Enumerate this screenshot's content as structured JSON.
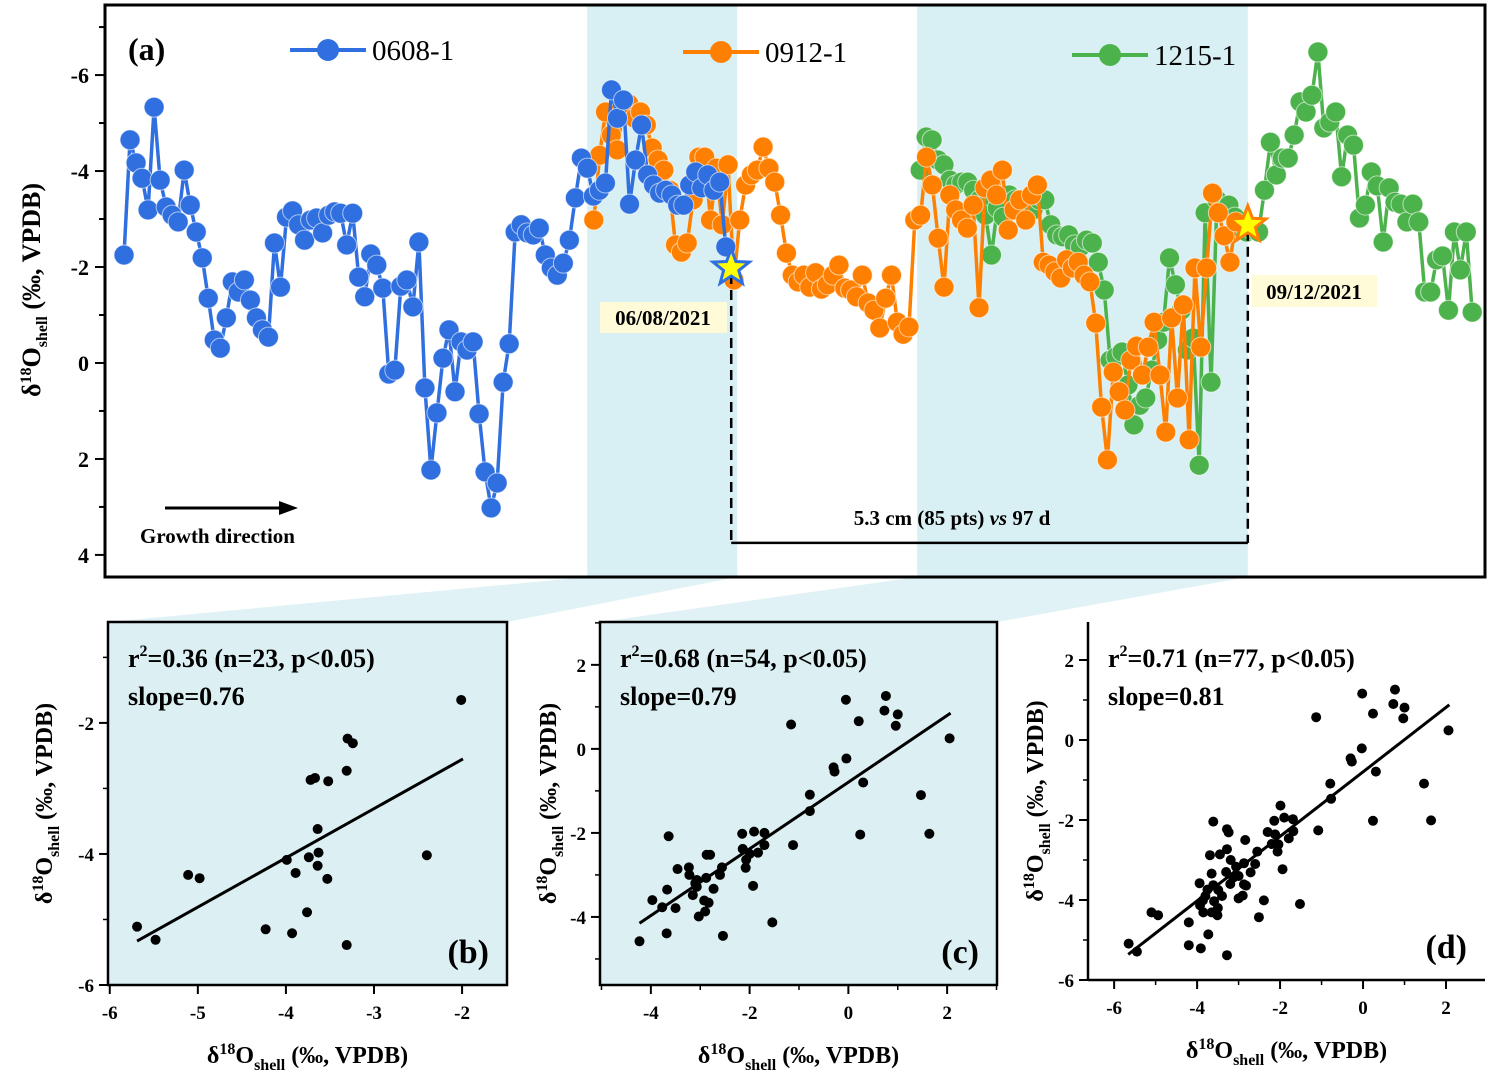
{
  "chart_data": [
    {
      "panel": "(a)",
      "type": "line",
      "xlabel": "",
      "ylabel": {
        "prefix": "δ",
        "sup": "18",
        "main": "O",
        "sub": "shell",
        "suffix": " (‰, VPDB)"
      },
      "ylim": [
        -7.46,
        4.46
      ],
      "y_reversed": true,
      "xlim": [
        -3.17,
        226.83
      ],
      "yticks": [
        -6,
        -4,
        -2,
        0,
        2,
        4
      ],
      "ytick_labels": [
        "-6",
        "-4",
        "-2",
        "0",
        "2",
        "4"
      ],
      "grid": false,
      "legend_placement": "top",
      "shaded_ranges": [
        [
          77.2,
          102.2
        ],
        [
          132.2,
          187.3
        ]
      ],
      "shade_color": "#d8eff3",
      "series": [
        {
          "name": "0608-1",
          "color": "#2f6fdf",
          "x_range": [
            0,
            100.3
          ],
          "values": [
            -2.25,
            -4.65,
            -4.17,
            -3.85,
            -3.19,
            -5.33,
            -3.81,
            -3.25,
            -3.08,
            -2.94,
            -4.02,
            -3.29,
            -2.73,
            -2.19,
            -1.35,
            -0.48,
            -0.31,
            -0.94,
            -1.69,
            -1.48,
            -1.73,
            -1.31,
            -0.94,
            -0.69,
            -0.54,
            -2.5,
            -1.58,
            -3.04,
            -3.17,
            -2.88,
            -2.56,
            -2.98,
            -3.02,
            -2.71,
            -3.08,
            -3.15,
            -3.12,
            -2.46,
            -3.12,
            -1.79,
            -1.38,
            -2.27,
            -2.04,
            -1.56,
            0.23,
            0.15,
            -1.6,
            -1.73,
            -1.17,
            -2.52,
            0.52,
            2.23,
            1.04,
            -0.1,
            -0.69,
            0.6,
            -0.44,
            -0.27,
            -0.44,
            1.06,
            2.27,
            3.02,
            2.5,
            0.4,
            -0.4,
            -2.73,
            -2.88,
            -2.71,
            -2.67,
            -2.81,
            -2.25,
            -1.98,
            -1.83,
            -2.08,
            -2.56,
            -3.44,
            -4.27,
            -4.06,
            -3.48,
            -3.6,
            -3.75,
            -5.69,
            -5.1,
            -5.48,
            -3.31,
            -4.23,
            -4.96,
            -3.92,
            -3.71,
            -3.54,
            -3.6,
            -3.5,
            -3.29,
            -3.29,
            -3.71,
            -3.98,
            -3.65,
            -3.92,
            -3.6,
            -3.77,
            -2.42
          ]
        },
        {
          "name": "0912-1",
          "color": "#ff8000",
          "x_range": [
            78.3,
            185.3
          ],
          "values": [
            -2.98,
            -4.33,
            -5.23,
            -4.75,
            -4.44,
            -5.27,
            -5.4,
            -5.1,
            -5.23,
            -4.96,
            -4.48,
            -4.23,
            -4.02,
            -3.6,
            -2.46,
            -2.31,
            -2.5,
            -3.4,
            -4.29,
            -4.29,
            -2.98,
            -4.06,
            -2.88,
            -4.13,
            -1.73,
            -2.98,
            -3.71,
            -3.92,
            -4.02,
            -4.5,
            -4.06,
            -3.77,
            -3.08,
            -2.29,
            -1.83,
            -1.69,
            -1.83,
            -1.58,
            -1.88,
            -1.54,
            -1.63,
            -1.83,
            -2.04,
            -1.56,
            -1.52,
            -1.38,
            -1.83,
            -1.25,
            -1.1,
            -0.73,
            -1.35,
            -1.83,
            -0.85,
            -0.6,
            -0.75,
            -2.98,
            -3.08,
            -4.29,
            -3.71,
            -2.6,
            -1.58,
            -3.5,
            -3.19,
            -2.98,
            -2.81,
            -3.29,
            -1.15,
            -3.65,
            -3.81,
            -3.5,
            -4.02,
            -2.77,
            -3.19,
            -3.4,
            -2.98,
            -3.5,
            -3.71,
            -2.1,
            -2.04,
            -1.9,
            -1.77,
            -2.15,
            -1.98,
            -2.1,
            -1.83,
            -1.69,
            -0.83,
            0.92,
            2.02,
            0.19,
            0.6,
            0.98,
            -0.06,
            -0.35,
            0.25,
            -0.33,
            -0.85,
            0.25,
            1.44,
            -0.94,
            0.73,
            -1.21,
            1.6,
            -1.98,
            -0.33,
            -1.98,
            -3.54,
            -3.13,
            -2.65,
            -2.1,
            -2.94
          ]
        },
        {
          "name": "1215-1",
          "color": "#4cb24c",
          "x_range": [
            132.7,
            224.7
          ],
          "values": [
            -4.02,
            -4.71,
            -4.65,
            -4.23,
            -4.13,
            -3.81,
            -3.71,
            -3.77,
            -3.77,
            -3.6,
            -3.4,
            -3.08,
            -2.25,
            -3.23,
            -3.04,
            -3.5,
            -3.4,
            -3.19,
            -3.25,
            -3.19,
            -3.4,
            -3.4,
            -2.88,
            -2.67,
            -2.63,
            -2.67,
            -2.46,
            -2.42,
            -2.56,
            -2.5,
            -2.1,
            -1.52,
            -0.06,
            -0.13,
            -0.23,
            0.46,
            1.29,
            0.88,
            0.73,
            0.15,
            -0.48,
            -0.85,
            -2.19,
            -1.63,
            -1.1,
            -0.27,
            -0.52,
            2.13,
            -3.13,
            0.4,
            -3.4,
            -3.19,
            -3.29,
            -3.04,
            -2.83,
            -2.73,
            -2.77,
            -2.73,
            -3.6,
            -4.6,
            -3.92,
            -4.27,
            -4.27,
            -4.75,
            -5.44,
            -5.23,
            -5.58,
            -6.48,
            -4.9,
            -5.02,
            -5.23,
            -3.88,
            -4.75,
            -4.54,
            -3.02,
            -3.29,
            -3.98,
            -3.69,
            -2.52,
            -3.65,
            -3.35,
            -3.31,
            -2.94,
            -3.31,
            -2.94,
            -1.48,
            -1.48,
            -2.15,
            -2.23,
            -1.1,
            -2.73,
            -1.94,
            -2.73,
            -1.06
          ]
        }
      ],
      "markers": [
        {
          "x": 101.2,
          "y": -1.98,
          "shape": "star",
          "fill": "#ffff00",
          "stroke": "#2f6fdf"
        },
        {
          "x": 187.3,
          "y": -2.88,
          "shape": "star",
          "fill": "#ffff00",
          "stroke": "#ff8000"
        }
      ],
      "bracket_y": 3.75,
      "annotations": {
        "date_start": "06/08/2021",
        "date_end": "09/12/2021",
        "span_text_1": "5.3 cm (85 pts) ",
        "span_text_italic": "vs",
        "span_text_2": " 97 d",
        "growth": "Growth direction"
      }
    },
    {
      "panel": "(b)",
      "type": "scatter",
      "stat_line1": {
        "r": "r",
        "sup": "2",
        "rest": "=0.36 (n=23, p<0.05)"
      },
      "stat_line2": "slope=0.76",
      "xlabel": {
        "prefix": "δ",
        "sup": "18",
        "main": "O",
        "sub": "shell",
        "suffix": " (‰, VPDB)"
      },
      "ylabel": {
        "prefix": "δ",
        "sup": "18",
        "main": "O",
        "sub": "shell",
        "suffix": " (‰, VPDB)"
      },
      "xlim": [
        -6.02,
        -1.49
      ],
      "ylim": [
        -6,
        -0.46
      ],
      "xticks": [
        -6,
        -5,
        -4,
        -3,
        -2
      ],
      "yticks": [
        -6,
        -4,
        -2
      ],
      "background": "#dcf0f4",
      "fit": [
        [
          -5.69,
          -5.33
        ],
        [
          -1.99,
          -2.55
        ]
      ],
      "points": [
        [
          -5.69,
          -5.11
        ],
        [
          -5.48,
          -5.31
        ],
        [
          -5.11,
          -4.32
        ],
        [
          -4.98,
          -4.37
        ],
        [
          -4.23,
          -5.15
        ],
        [
          -3.99,
          -4.09
        ],
        [
          -3.93,
          -5.21
        ],
        [
          -3.89,
          -4.29
        ],
        [
          -3.76,
          -4.89
        ],
        [
          -3.74,
          -4.05
        ],
        [
          -3.72,
          -2.87
        ],
        [
          -3.67,
          -2.84
        ],
        [
          -3.64,
          -3.62
        ],
        [
          -3.63,
          -3.98
        ],
        [
          -3.64,
          -4.18
        ],
        [
          -3.53,
          -4.38
        ],
        [
          -3.52,
          -2.89
        ],
        [
          -3.31,
          -2.73
        ],
        [
          -3.3,
          -2.24
        ],
        [
          -3.24,
          -2.31
        ],
        [
          -3.31,
          -5.39
        ],
        [
          -2.4,
          -4.02
        ],
        [
          -2.01,
          -1.65
        ]
      ]
    },
    {
      "panel": "(c)",
      "type": "scatter",
      "stat_line1": {
        "r": "r",
        "sup": "2",
        "rest": "=0.68 (n=54, p<0.05)"
      },
      "stat_line2": "slope=0.79",
      "xlabel": {
        "prefix": "δ",
        "sup": "18",
        "main": "O",
        "sub": "shell",
        "suffix": " (‰, VPDB)"
      },
      "ylabel": {
        "prefix": "δ",
        "sup": "18",
        "main": "O",
        "sub": "shell",
        "suffix": " (‰, VPDB)"
      },
      "xlim": [
        -5.03,
        3.01
      ],
      "ylim": [
        -5.62,
        3.02
      ],
      "xticks": [
        -4,
        -2,
        0,
        2
      ],
      "yticks": [
        -4,
        -2,
        0,
        2
      ],
      "background": "#dcf0f4",
      "fit": [
        [
          -4.23,
          -4.15
        ],
        [
          2.07,
          0.85
        ]
      ],
      "points": [
        [
          -0.05,
          1.17
        ],
        [
          0.76,
          1.26
        ],
        [
          0.73,
          0.91
        ],
        [
          1.0,
          0.82
        ],
        [
          0.96,
          0.55
        ],
        [
          0.21,
          0.66
        ],
        [
          -1.16,
          0.58
        ],
        [
          2.05,
          0.25
        ],
        [
          -0.04,
          -0.23
        ],
        [
          -0.3,
          -0.44
        ],
        [
          -0.28,
          -0.54
        ],
        [
          0.3,
          -0.8
        ],
        [
          -0.78,
          -1.09
        ],
        [
          -0.78,
          -1.48
        ],
        [
          1.47,
          -1.1
        ],
        [
          0.24,
          -2.04
        ],
        [
          1.64,
          -2.02
        ],
        [
          -3.64,
          -2.08
        ],
        [
          -2.15,
          -2.02
        ],
        [
          -1.91,
          -1.97
        ],
        [
          -1.7,
          -2.0
        ],
        [
          -1.7,
          -2.29
        ],
        [
          -1.12,
          -2.29
        ],
        [
          -2.14,
          -2.38
        ],
        [
          -1.83,
          -2.47
        ],
        [
          -2.87,
          -2.52
        ],
        [
          -2.8,
          -2.52
        ],
        [
          -2.07,
          -2.64
        ],
        [
          -2.08,
          -2.83
        ],
        [
          -2.56,
          -2.82
        ],
        [
          -3.23,
          -2.82
        ],
        [
          -3.46,
          -2.86
        ],
        [
          -3.22,
          -3.0
        ],
        [
          -2.88,
          -3.07
        ],
        [
          -3.07,
          -3.12
        ],
        [
          -3.07,
          -3.28
        ],
        [
          -2.73,
          -3.33
        ],
        [
          -3.67,
          -3.35
        ],
        [
          -3.15,
          -3.48
        ],
        [
          -2.92,
          -3.61
        ],
        [
          -2.83,
          -3.66
        ],
        [
          -1.93,
          -3.26
        ],
        [
          -3.97,
          -3.6
        ],
        [
          -3.77,
          -3.77
        ],
        [
          -3.5,
          -3.79
        ],
        [
          -2.9,
          -3.87
        ],
        [
          -3.03,
          -3.99
        ],
        [
          -1.54,
          -4.13
        ],
        [
          -3.68,
          -4.39
        ],
        [
          -2.54,
          -4.45
        ],
        [
          -4.23,
          -4.58
        ],
        [
          -3.1,
          -3.2
        ],
        [
          -2.0,
          -2.5
        ],
        [
          -2.6,
          -3.0
        ]
      ]
    },
    {
      "panel": "(d)",
      "type": "scatter",
      "stat_line1": {
        "r": "r",
        "sup": "2",
        "rest": "=0.71 (n=77, p<0.05)"
      },
      "stat_line2": "slope=0.81",
      "xlabel": {
        "prefix": "δ",
        "sup": "18",
        "main": "O",
        "sub": "shell",
        "suffix": " (‰, VPDB)"
      },
      "ylabel": {
        "prefix": "δ",
        "sup": "18",
        "main": "O",
        "sub": "shell",
        "suffix": " (‰, VPDB)"
      },
      "xlim": [
        -6.63,
        2.94
      ],
      "ylim": [
        -6,
        2.95
      ],
      "xticks": [
        -6,
        -4,
        -2,
        0,
        2
      ],
      "yticks": [
        -6,
        -4,
        -2,
        0,
        2
      ],
      "background": "#ffffff",
      "fit": [
        [
          -5.66,
          -5.36
        ],
        [
          2.08,
          0.88
        ]
      ],
      "points": [
        [
          -0.02,
          1.16
        ],
        [
          0.77,
          1.26
        ],
        [
          0.73,
          0.9
        ],
        [
          1.0,
          0.81
        ],
        [
          0.97,
          0.54
        ],
        [
          0.24,
          0.66
        ],
        [
          -1.13,
          0.57
        ],
        [
          2.06,
          0.24
        ],
        [
          -0.03,
          -0.21
        ],
        [
          -0.3,
          -0.46
        ],
        [
          -0.27,
          -0.54
        ],
        [
          0.31,
          -0.79
        ],
        [
          -0.79,
          -1.09
        ],
        [
          -0.77,
          -1.47
        ],
        [
          1.47,
          -1.09
        ],
        [
          0.24,
          -2.02
        ],
        [
          1.64,
          -2.01
        ],
        [
          -1.08,
          -2.26
        ],
        [
          -1.99,
          -1.64
        ],
        [
          -2.14,
          -2.02
        ],
        [
          -1.9,
          -1.94
        ],
        [
          -1.69,
          -1.98
        ],
        [
          -1.68,
          -2.28
        ],
        [
          -1.79,
          -2.46
        ],
        [
          -2.12,
          -2.36
        ],
        [
          -2.04,
          -2.61
        ],
        [
          -2.06,
          -2.79
        ],
        [
          -1.94,
          -3.23
        ],
        [
          -1.52,
          -4.1
        ],
        [
          -3.61,
          -2.04
        ],
        [
          -3.28,
          -2.23
        ],
        [
          -3.24,
          -2.31
        ],
        [
          -2.84,
          -2.5
        ],
        [
          -2.55,
          -2.79
        ],
        [
          -3.69,
          -2.88
        ],
        [
          -3.45,
          -2.86
        ],
        [
          -3.28,
          -2.73
        ],
        [
          -3.19,
          -3.0
        ],
        [
          -3.06,
          -3.17
        ],
        [
          -2.87,
          -3.08
        ],
        [
          -2.71,
          -3.31
        ],
        [
          -3.13,
          -3.44
        ],
        [
          -3.65,
          -3.34
        ],
        [
          -3.94,
          -3.58
        ],
        [
          -3.61,
          -3.63
        ],
        [
          -3.75,
          -3.74
        ],
        [
          -3.49,
          -3.75
        ],
        [
          -2.87,
          -3.61
        ],
        [
          -2.82,
          -3.64
        ],
        [
          -2.9,
          -3.89
        ],
        [
          -3.0,
          -3.96
        ],
        [
          -2.39,
          -4.01
        ],
        [
          -3.86,
          -4.01
        ],
        [
          -3.59,
          -4.03
        ],
        [
          -3.93,
          -4.13
        ],
        [
          -3.85,
          -4.31
        ],
        [
          -3.65,
          -4.31
        ],
        [
          -3.51,
          -4.38
        ],
        [
          -2.51,
          -4.43
        ],
        [
          -5.1,
          -4.31
        ],
        [
          -4.94,
          -4.38
        ],
        [
          -4.2,
          -4.56
        ],
        [
          -3.73,
          -4.86
        ],
        [
          -5.65,
          -5.09
        ],
        [
          -5.45,
          -5.29
        ],
        [
          -4.2,
          -5.13
        ],
        [
          -3.91,
          -5.21
        ],
        [
          -3.28,
          -5.38
        ],
        [
          -3.2,
          -3.6
        ],
        [
          -3.4,
          -3.9
        ],
        [
          -2.3,
          -2.3
        ],
        [
          -3.0,
          -3.4
        ],
        [
          -2.6,
          -3.1
        ],
        [
          -3.3,
          -3.3
        ],
        [
          -3.8,
          -3.9
        ],
        [
          -2.2,
          -2.6
        ],
        [
          -3.5,
          -4.2
        ]
      ]
    }
  ]
}
